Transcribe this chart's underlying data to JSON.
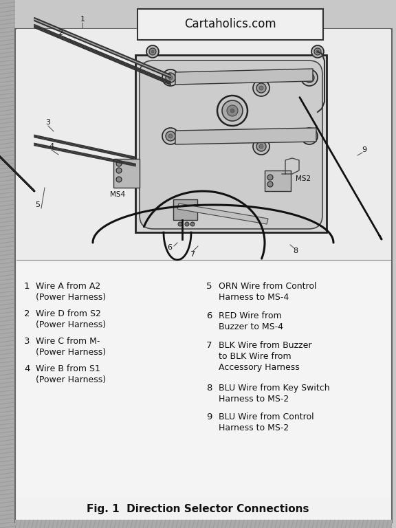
{
  "title": "Cartaholics.com",
  "fig_label": "Fig. 1  Direction Selector Connections",
  "bg_outer": "#c8c8c8",
  "bg_inner": "#f0f0f0",
  "bg_diagram": "#e8e8e8",
  "line_color": "#111111",
  "legend_items_left": [
    [
      "1",
      "Wire A from A2",
      "(Power Harness)"
    ],
    [
      "2",
      "Wire D from S2",
      "(Power Harness)"
    ],
    [
      "3",
      "Wire C from M-",
      "(Power Harness)"
    ],
    [
      "4",
      "Wire B from S1",
      "(Power Harness)"
    ]
  ],
  "legend_items_right": [
    [
      "5",
      "ORN Wire from Control",
      "Harness to MS-4"
    ],
    [
      "6",
      "RED Wire from",
      "Buzzer to MS-4"
    ],
    [
      "7",
      "BLK Wire from Buzzer",
      "to BLK Wire from",
      "Accessory Harness"
    ],
    [
      "8",
      "BLU Wire from Key Switch",
      "Harness to MS-2"
    ],
    [
      "9",
      "BLU Wire from Control",
      "Harness to MS-2"
    ]
  ]
}
